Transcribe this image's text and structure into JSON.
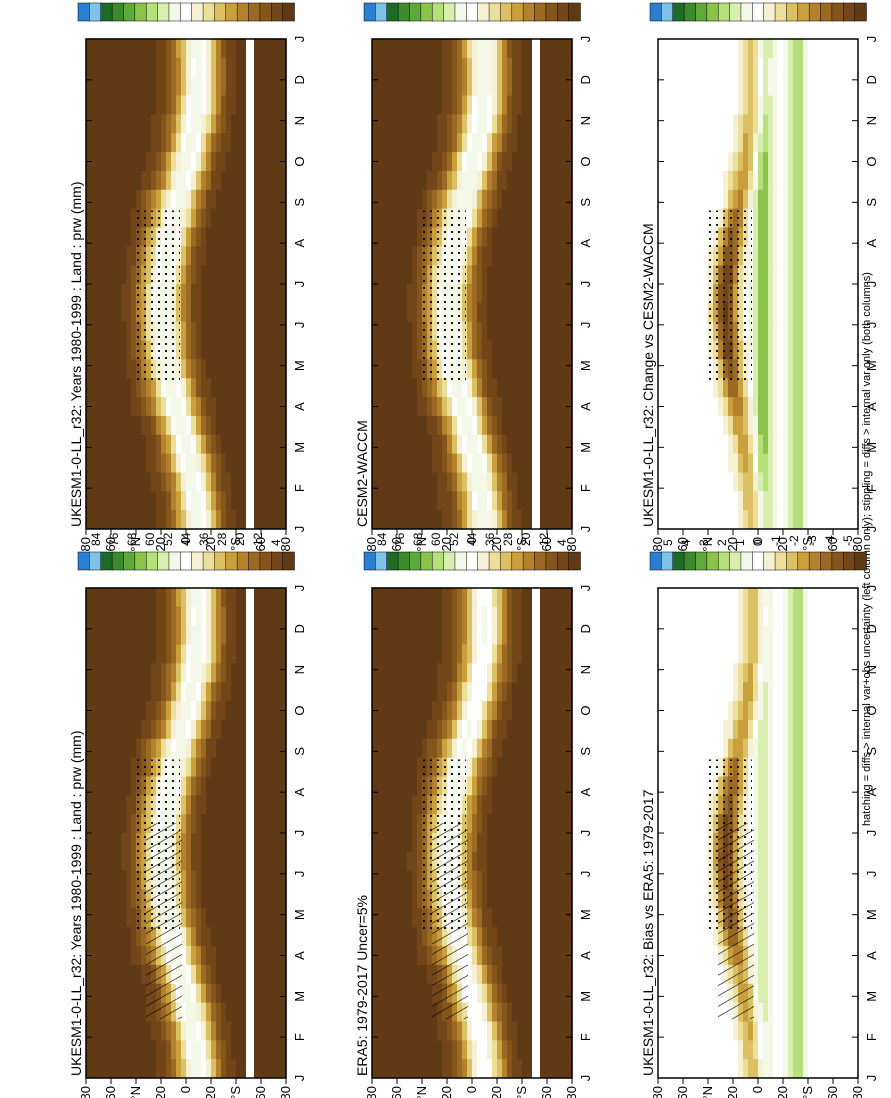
{
  "footnote": "hatching = diffs > internal var+obs uncertainty (left column only); stippling = diffs > internal var only (both columns)",
  "months": [
    "J",
    "F",
    "M",
    "A",
    "M",
    "J",
    "J",
    "A",
    "S",
    "O",
    "N",
    "D",
    "J"
  ],
  "lat_ticks": [
    "80",
    "60",
    "°N",
    "20",
    "0",
    "20",
    "°S",
    "60",
    "80"
  ],
  "colorbars": {
    "abs": {
      "labels": [
        "84",
        "76",
        "68",
        "60",
        "52",
        "44",
        "36",
        "28",
        "20",
        "12",
        "4"
      ],
      "colors": [
        "#2b7fd0",
        "#7fc4e8",
        "#1e6b27",
        "#3c8a2e",
        "#5fa83a",
        "#8cc34a",
        "#b6e07a",
        "#d9efb0",
        "#f4f8e8",
        "#ffffff",
        "#f6f0d4",
        "#ecdf9c",
        "#dcc064",
        "#c9a03c",
        "#b4822c",
        "#9a6a24",
        "#84561c",
        "#724618",
        "#603a14"
      ]
    },
    "diff": {
      "labels": [
        "5",
        "4",
        "3",
        "2",
        "1",
        "0",
        "-1",
        "-2",
        "-3",
        "-4",
        "-5"
      ],
      "colors": [
        "#2b7fd0",
        "#7fc4e8",
        "#1e6b27",
        "#3c8a2e",
        "#5fa83a",
        "#8cc34a",
        "#b6e07a",
        "#d9efb0",
        "#f4f8e8",
        "#ffffff",
        "#f6f0d4",
        "#ecdf9c",
        "#dcc064",
        "#c9a03c",
        "#b4822c",
        "#9a6a24",
        "#84561c",
        "#724618",
        "#603a14"
      ]
    }
  },
  "panels": [
    {
      "title": "UKESM1-0-LL_r32: Years 1980-1999 : Land : prw (mm)",
      "cbar": "abs",
      "kind": "abs",
      "marks": "hatch+stipple"
    },
    {
      "title": "ERA5: 1979-2017 Uncer=5%",
      "cbar": "abs",
      "kind": "abs2",
      "marks": "hatch+stipple"
    },
    {
      "title": "UKESM1-0-LL_r32: Bias vs ERA5: 1979-2017",
      "cbar": "diff",
      "kind": "bias",
      "marks": "hatch+stipple"
    },
    {
      "title": "UKESM1-0-LL_r32: Years 1980-1999 : Land : prw (mm)",
      "cbar": "abs",
      "kind": "abs",
      "marks": "stipple"
    },
    {
      "title": "CESM2-WACCM",
      "cbar": "abs",
      "kind": "abs3",
      "marks": "stipple"
    },
    {
      "title": "UKESM1-0-LL_r32: Change vs CESM2-WACCM",
      "cbar": "diff",
      "kind": "change",
      "marks": "stipple"
    }
  ],
  "chart_data": {
    "type": "heatmap",
    "description_of_axes": "Zonal mean precipitable water over land by month (x) and latitude (y)",
    "x": [
      "J",
      "F",
      "M",
      "A",
      "M",
      "J",
      "J",
      "A",
      "S",
      "O",
      "N",
      "D",
      "J"
    ],
    "y_ticks": [
      "80",
      "60",
      "°N",
      "20",
      "0",
      "20",
      "°S",
      "60",
      "80"
    ],
    "abs_levels_mm": [
      84,
      76,
      68,
      60,
      52,
      44,
      36,
      28,
      20,
      12,
      4
    ],
    "diff_levels_mm": [
      5,
      4,
      3,
      2,
      1,
      0,
      -1,
      -2,
      -3,
      -4,
      -5
    ],
    "panels": [
      {
        "title": "UKESM1-0-LL_r32: Years 1980-1999 : Land : prw (mm)"
      },
      {
        "title": "ERA5: 1979-2017 Uncer=5%"
      },
      {
        "title": "UKESM1-0-LL_r32: Bias vs ERA5: 1979-2017"
      },
      {
        "title": "UKESM1-0-LL_r32: Years 1980-1999 : Land : prw (mm)"
      },
      {
        "title": "CESM2-WACCM"
      },
      {
        "title": "UKESM1-0-LL_r32: Change vs CESM2-WACCM"
      }
    ]
  }
}
